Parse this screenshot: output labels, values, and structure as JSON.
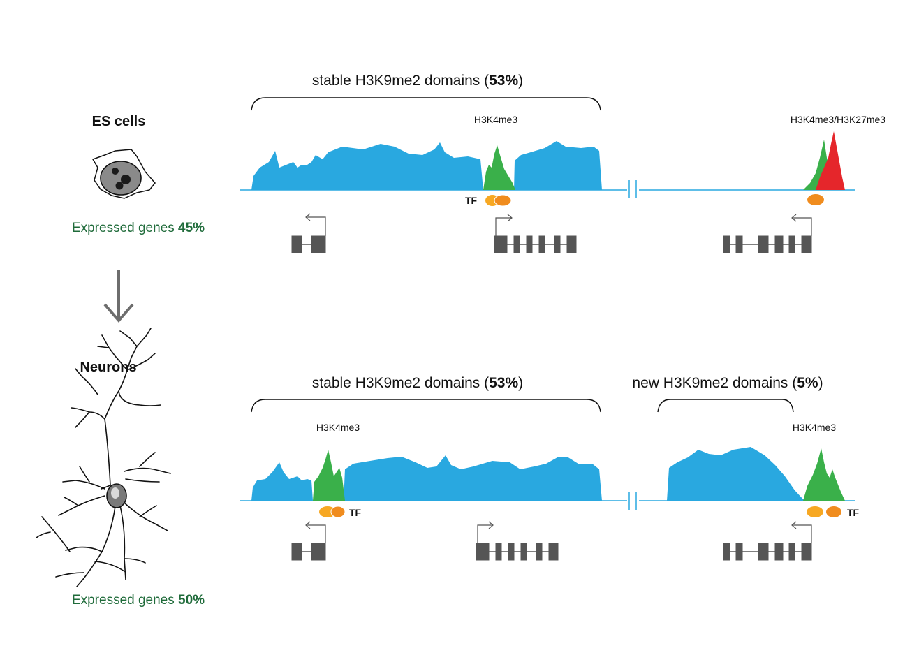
{
  "es": {
    "title": "ES cells",
    "expressed_prefix": "Expressed genes ",
    "expressed_value": "45%",
    "stable_prefix": "stable  H3K9me2 domains (",
    "stable_value": "53%",
    "stable_suffix": ")",
    "mark_left": "H3K4me3",
    "mark_right": "H3K4me3/H3K27me3",
    "tf": "TF"
  },
  "neurons": {
    "title": "Neurons",
    "expressed_prefix": "Expressed genes ",
    "expressed_value": "50%",
    "stable_prefix": "stable  H3K9me2 domains (",
    "stable_value": "53%",
    "stable_suffix": ")",
    "new_prefix": "new H3K9me2 domains (",
    "new_value": "5%",
    "new_suffix": ")",
    "mark_left": "H3K4me3",
    "mark_right": "H3K4me3",
    "tf_left": "TF",
    "tf_right": "TF"
  },
  "colors": {
    "h3k9me2": "#29a8e0",
    "h3k4me3": "#3ab04a",
    "h3k27me3": "#e5262b",
    "tf": "#f7a823",
    "tf_dark": "#f08c1e",
    "gene": "#555555",
    "expressed_text": "#1f6b3a"
  },
  "icons": [
    "es-cell-icon",
    "down-arrow-icon",
    "neuron-icon"
  ]
}
